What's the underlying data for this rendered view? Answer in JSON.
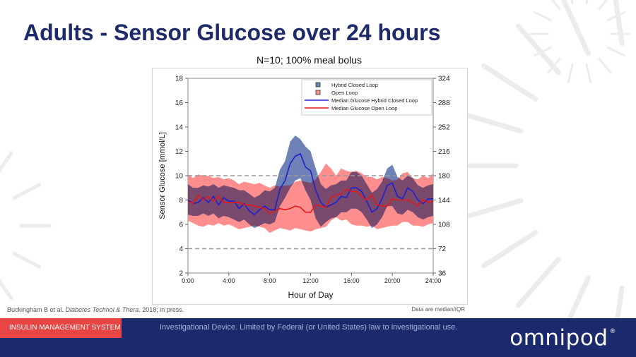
{
  "slide": {
    "title": "Adults - Sensor Glucose over 24 hours",
    "subtitle": "N=10; 100% meal bolus",
    "citation_pre": "Buckingham B et al. ",
    "citation_journal": "Diabetes Technol & Thera",
    "citation_post": ". 2018; in press.",
    "data_note": "Data are median/IQR"
  },
  "footer": {
    "tag": "INSULIN MANAGEMENT SYSTEM",
    "disclaimer": "Investigational Device. Limited by Federal (or United States) law to investigational use.",
    "brand": "omnipod",
    "brand_mark": "®"
  },
  "colors": {
    "title": "#1f2a6b",
    "footer_bg": "#1a2a6c",
    "footer_tag": "#e84545",
    "hcl_band": "#6f82b8",
    "ol_band": "#ff8f8f",
    "overlap_band": "#7a4a6e",
    "hcl_line": "#1f1fcf",
    "ol_line": "#e01818"
  },
  "chart_data": {
    "type": "area",
    "x": [
      0,
      0.5,
      1,
      1.5,
      2,
      2.5,
      3,
      3.5,
      4,
      4.5,
      5,
      5.5,
      6,
      6.5,
      7,
      7.5,
      8,
      8.5,
      9,
      9.5,
      10,
      10.5,
      11,
      11.5,
      12,
      12.5,
      13,
      13.5,
      14,
      14.5,
      15,
      15.5,
      16,
      16.5,
      17,
      17.5,
      18,
      18.5,
      19,
      19.5,
      20,
      20.5,
      21,
      21.5,
      22,
      22.5,
      23,
      23.5,
      24
    ],
    "xlabel": "Hour of Day",
    "ylabel": "Sensor Glucose [mmol/L]",
    "ylim": [
      2,
      18
    ],
    "yticks": [
      2,
      4,
      6,
      8,
      10,
      12,
      14,
      16,
      18
    ],
    "xtick_positions": [
      0,
      4,
      8,
      12,
      16,
      20,
      24
    ],
    "xtick_labels": [
      "0:00",
      "4:00",
      "8:00",
      "12:00",
      "16:00",
      "20:00",
      "24:00"
    ],
    "y2tick_labels": [
      "36",
      "72",
      "108",
      "144",
      "180",
      "216",
      "252",
      "288",
      "324"
    ],
    "reference_lines": [
      4,
      10
    ],
    "legend_position": "top-right",
    "legend": [
      {
        "label": "Hybrid Closed Loop",
        "kind": "band",
        "series": "hcl"
      },
      {
        "label": "Open Loop",
        "kind": "band",
        "series": "ol"
      },
      {
        "label": "Median Glucose Hybrid Closed Loop",
        "kind": "line",
        "series": "hcl"
      },
      {
        "label": "Median Glucose Open Loop",
        "kind": "line",
        "series": "ol"
      }
    ],
    "series": [
      {
        "key": "hcl",
        "median": [
          8.0,
          7.7,
          7.8,
          8.2,
          7.8,
          8.3,
          7.6,
          8.2,
          7.9,
          7.9,
          7.3,
          7.7,
          7.1,
          6.8,
          7.2,
          7.5,
          7.2,
          7.2,
          8.9,
          9.6,
          11.0,
          11.6,
          11.8,
          10.7,
          10.4,
          8.8,
          7.8,
          7.4,
          7.6,
          7.8,
          8.3,
          8.2,
          9.0,
          9.0,
          8.7,
          7.9,
          7.0,
          7.3,
          8.1,
          9.2,
          9.4,
          8.3,
          8.1,
          9.0,
          8.7,
          8.0,
          7.7,
          8.1,
          8.1
        ],
        "q1": [
          6.8,
          6.7,
          6.7,
          6.9,
          6.7,
          6.9,
          6.5,
          6.7,
          6.6,
          6.4,
          6.2,
          6.4,
          6.0,
          5.7,
          5.9,
          6.1,
          6.0,
          6.2,
          7.5,
          8.2,
          9.0,
          9.6,
          9.8,
          8.8,
          8.0,
          6.5,
          5.8,
          6.2,
          6.5,
          6.6,
          7.0,
          7.0,
          7.3,
          7.3,
          7.0,
          6.4,
          5.7,
          6.0,
          6.6,
          7.5,
          7.5,
          6.9,
          6.8,
          7.2,
          7.0,
          6.6,
          6.4,
          6.6,
          6.7
        ],
        "q3": [
          9.3,
          9.0,
          9.0,
          9.2,
          9.1,
          9.3,
          9.0,
          9.2,
          9.1,
          9.0,
          8.8,
          8.8,
          8.5,
          8.2,
          8.4,
          8.8,
          8.7,
          9.0,
          10.5,
          11.2,
          12.8,
          13.3,
          13.0,
          12.4,
          12.0,
          10.6,
          9.3,
          8.9,
          9.2,
          9.3,
          9.6,
          9.6,
          10.3,
          10.3,
          10.0,
          9.3,
          8.6,
          8.9,
          9.5,
          10.6,
          10.9,
          9.9,
          9.6,
          10.0,
          9.8,
          9.2,
          9.0,
          9.2,
          9.3
        ]
      },
      {
        "key": "ol",
        "median": [
          7.9,
          7.7,
          8.4,
          8.0,
          8.3,
          7.9,
          8.3,
          7.8,
          7.8,
          7.8,
          7.8,
          7.6,
          7.6,
          7.5,
          7.4,
          7.3,
          6.9,
          7.1,
          7.3,
          7.2,
          7.3,
          7.5,
          7.4,
          7.0,
          7.0,
          7.6,
          7.5,
          7.4,
          8.2,
          8.4,
          8.5,
          8.9,
          8.7,
          8.7,
          8.3,
          8.0,
          8.4,
          7.6,
          7.5,
          7.5,
          8.1,
          8.0,
          8.0,
          8.0,
          7.8,
          7.5,
          8.0,
          7.8,
          7.9
        ],
        "q1": [
          6.3,
          6.1,
          5.9,
          5.8,
          6.0,
          5.9,
          6.1,
          5.9,
          6.0,
          5.8,
          5.6,
          5.7,
          5.8,
          5.9,
          5.8,
          5.7,
          5.3,
          5.5,
          5.7,
          5.6,
          5.5,
          5.7,
          5.6,
          5.5,
          5.4,
          5.6,
          5.7,
          5.8,
          6.3,
          6.6,
          6.3,
          6.4,
          6.0,
          5.9,
          5.9,
          5.8,
          5.9,
          5.6,
          5.7,
          5.8,
          5.9,
          5.9,
          6.2,
          6.2,
          5.9,
          5.9,
          5.8,
          6.0,
          6.1
        ],
        "q3": [
          10.1,
          9.8,
          10.1,
          10.0,
          10.0,
          9.8,
          9.9,
          9.7,
          9.8,
          9.6,
          9.3,
          9.5,
          9.4,
          9.3,
          9.4,
          9.2,
          9.0,
          9.2,
          9.1,
          9.2,
          9.2,
          9.5,
          9.6,
          9.5,
          9.4,
          9.7,
          10.3,
          11.0,
          10.6,
          10.0,
          10.6,
          10.4,
          10.3,
          10.4,
          10.2,
          9.9,
          9.9,
          9.7,
          9.9,
          9.8,
          9.6,
          9.7,
          10.2,
          10.3,
          9.8,
          9.7,
          10.0,
          9.8,
          10.2
        ]
      }
    ]
  }
}
